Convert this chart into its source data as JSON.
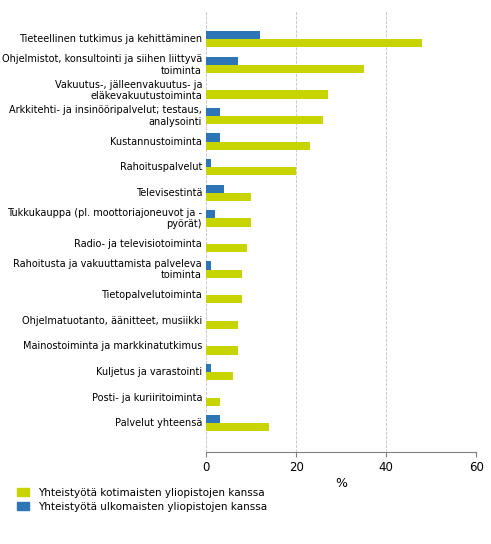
{
  "categories": [
    "Tieteellinen tutkimus ja kehittäminen",
    "Ohjelmistot, konsultointi ja siihen liittyvä\ntoiminta",
    "Vakuutus-, jälleenvakuutus- ja\neläkevakuutustoiminta",
    "Arkkitehti- ja insinööripalvelut; testaus,\nanalysointi",
    "Kustannustoiminta",
    "Rahoituspalvelut",
    "Televisestintä",
    "Tukkukauppa (pl. moottoriajoneuvot ja -\npyörät)",
    "Radio- ja televisiotoiminta",
    "Rahoitusta ja vakuuttamista palveleva\ntoiminta",
    "Tietopalvelutoiminta",
    "Ohjelmatuotanto, äänitteet, musiikki",
    "Mainostoiminta ja markkinatutkimus",
    "Kuljetus ja varastointi",
    "Posti- ja kuriiritoiminta",
    "Palvelut yhteensä"
  ],
  "domestic": [
    48,
    35,
    27,
    26,
    23,
    20,
    10,
    10,
    9,
    8,
    8,
    7,
    7,
    6,
    3,
    14
  ],
  "foreign": [
    12,
    7,
    0,
    3,
    3,
    1,
    4,
    2,
    0,
    1,
    0,
    0,
    0,
    1,
    0,
    3
  ],
  "color_domestic": "#c8d400",
  "color_foreign": "#2e75b6",
  "xlim": [
    0,
    60
  ],
  "xticks": [
    0,
    20,
    40,
    60
  ],
  "xlabel": "%",
  "legend_domestic": "Yhteistyötä kotimaisten yliopistojen kanssa",
  "legend_foreign": "Yhteistyötä ulkomaisten yliopistojen kanssa",
  "background_color": "#ffffff",
  "grid_color": "#c0c0c0"
}
